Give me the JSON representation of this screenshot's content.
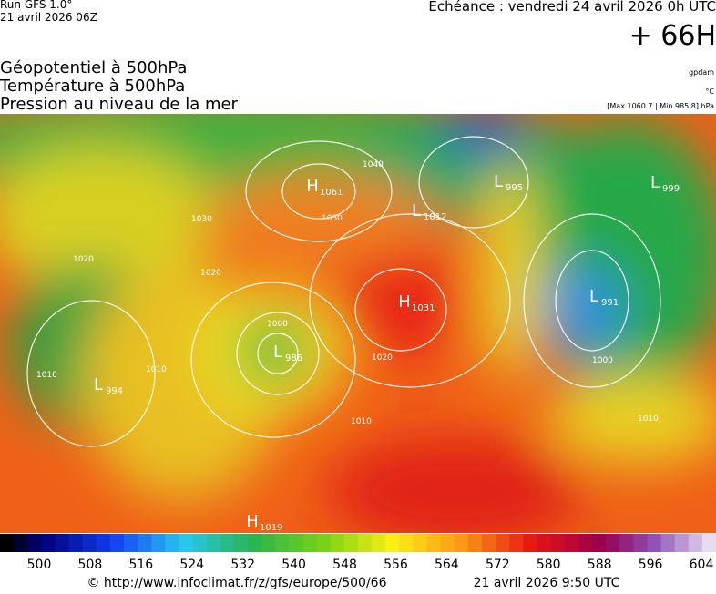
{
  "header": {
    "run": "Run GFS 1.0°",
    "run_date": "21 avril 2026 06Z",
    "forecast": "Echéance : vendredi 24 avril 2026 0h UTC",
    "lead": "+ 66H"
  },
  "fields": [
    "Géopotentiel à 500hPa",
    "Température à 500hPa",
    "Pression au niveau de la mer"
  ],
  "units": {
    "geopotential": "gpdam",
    "temperature": "°C",
    "pressure": "[Max 1060.7 | Min 985.8] hPa"
  },
  "centers": [
    {
      "letter": "H",
      "value": "1061"
    },
    {
      "letter": "L",
      "value": "995"
    },
    {
      "letter": "L",
      "value": "999"
    },
    {
      "letter": "L",
      "value": "1012"
    },
    {
      "letter": "H",
      "value": "1031"
    },
    {
      "letter": "L",
      "value": "991"
    },
    {
      "letter": "L",
      "value": "986"
    },
    {
      "letter": "L",
      "value": "994"
    },
    {
      "letter": "H",
      "value": "1019"
    }
  ],
  "isobar_labels": [
    "1030",
    "1020",
    "1010",
    "1000",
    "1040",
    "1030",
    "1020",
    "1010",
    "1000",
    "1010",
    "1020",
    "1010"
  ],
  "colorbar": {
    "labels": [
      500,
      508,
      516,
      524,
      532,
      540,
      548,
      556,
      564,
      572,
      580,
      588,
      596,
      604
    ]
  },
  "footer": {
    "url": "© http://www.infoclimat.fr/z/gfs/europe/500/66",
    "date": "21 avril 2026  9:50 UTC"
  }
}
